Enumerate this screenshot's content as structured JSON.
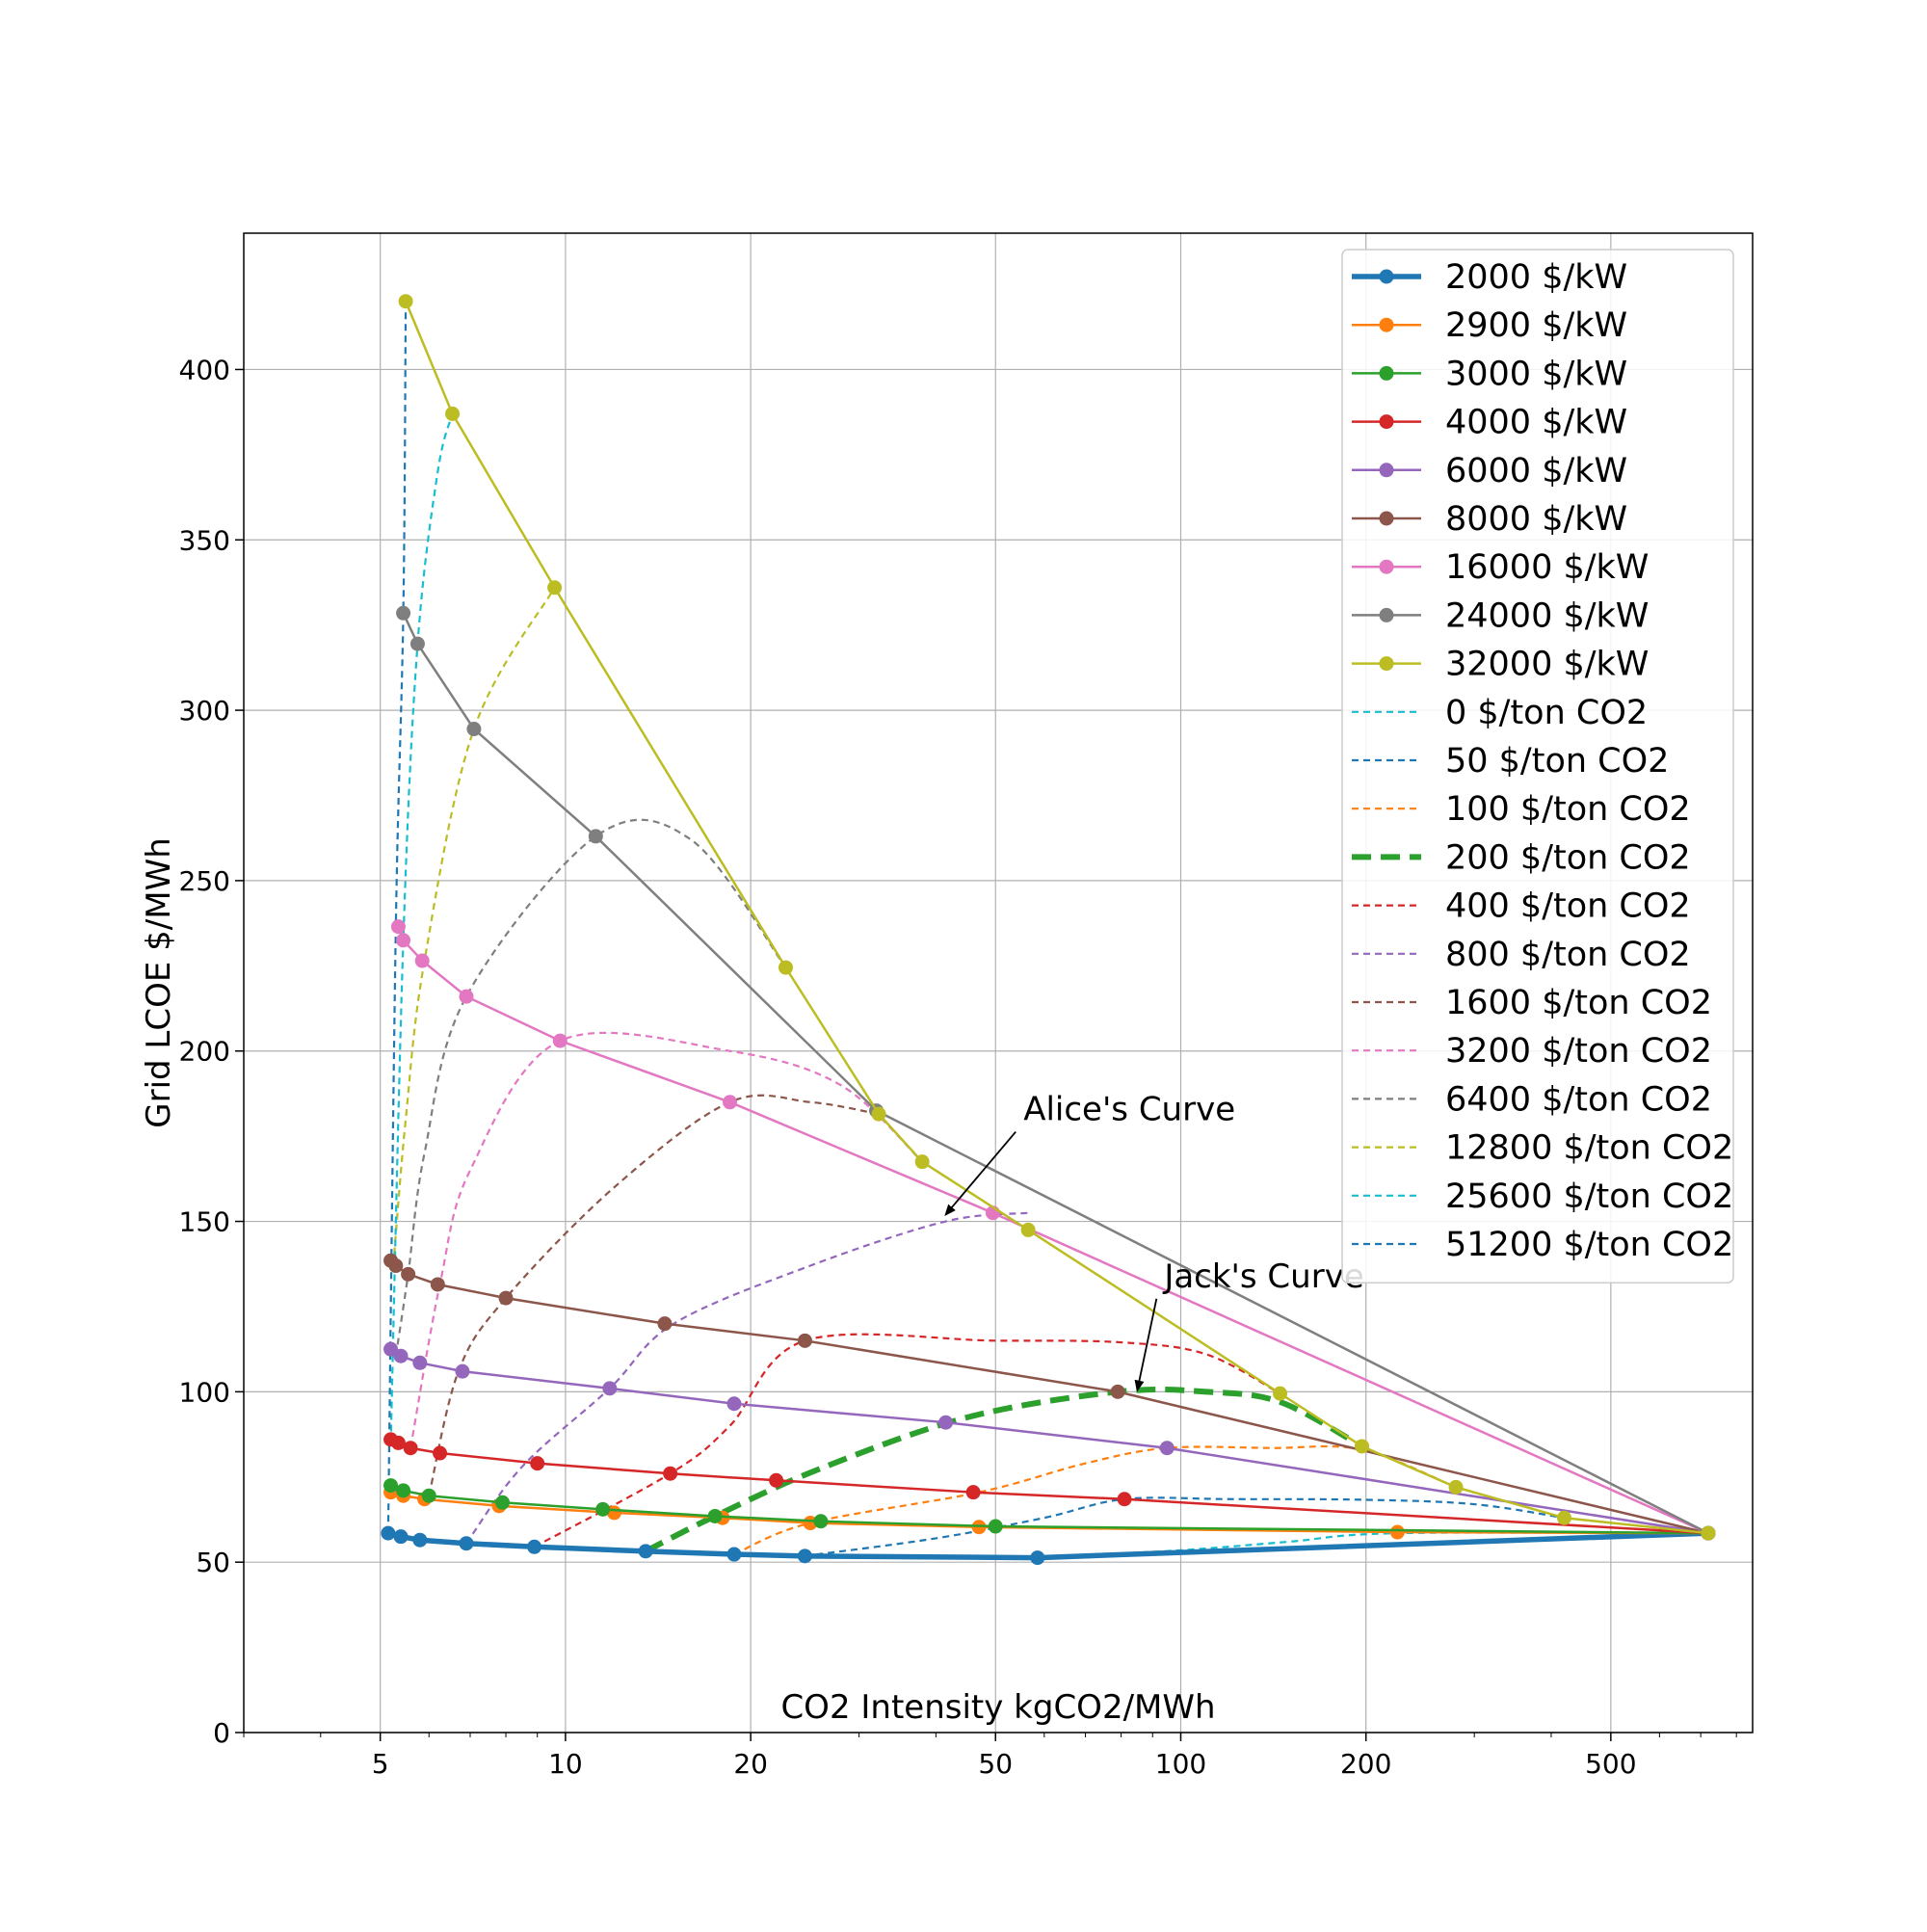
{
  "chart_data": {
    "type": "line",
    "title": "",
    "xlabel": "CO2 Intensity kgCO2/MWh",
    "ylabel": "Grid LCOE $/MWh",
    "xscale": "log",
    "xlim": [
      3,
      850
    ],
    "ylim": [
      0,
      440
    ],
    "xticks": [
      5,
      10,
      20,
      50,
      100,
      200,
      500
    ],
    "xtick_labels": [
      "5",
      "10",
      "20",
      "50",
      "100",
      "200",
      "500"
    ],
    "yticks": [
      0,
      50,
      100,
      150,
      200,
      250,
      300,
      350,
      400
    ],
    "ytick_labels": [
      "0",
      "50",
      "100",
      "150",
      "200",
      "250",
      "300",
      "350",
      "400"
    ],
    "grid": true,
    "legend_position": "top-right",
    "series": [
      {
        "name": "2000 $/kW",
        "style": "solid",
        "marker": true,
        "bold": true,
        "color": "#1f77b4",
        "x": [
          5.15,
          5.4,
          5.8,
          6.9,
          8.9,
          13.5,
          18.8,
          24.5,
          58.5,
          720
        ],
        "y": [
          58.5,
          57.5,
          56.5,
          55.5,
          54.5,
          53.2,
          52.3,
          51.8,
          51.3,
          58.5
        ]
      },
      {
        "name": "2900 $/kW",
        "style": "solid",
        "marker": true,
        "color": "#ff7f0e",
        "x": [
          5.2,
          5.45,
          5.9,
          7.8,
          12.0,
          18.0,
          25.0,
          47.0,
          225,
          720
        ],
        "y": [
          70.5,
          69.5,
          68.5,
          66.5,
          64.5,
          63.0,
          61.5,
          60.3,
          58.8,
          58.5
        ]
      },
      {
        "name": "3000 $/kW",
        "style": "solid",
        "marker": true,
        "color": "#2ca02c",
        "x": [
          5.2,
          5.45,
          6.0,
          7.9,
          11.5,
          17.5,
          26.0,
          50.0,
          720
        ],
        "y": [
          72.5,
          71.0,
          69.5,
          67.5,
          65.5,
          63.5,
          62.0,
          60.5,
          58.5
        ]
      },
      {
        "name": "4000 $/kW",
        "style": "solid",
        "marker": true,
        "color": "#d62728",
        "x": [
          5.2,
          5.35,
          5.6,
          6.25,
          9.0,
          14.8,
          22.0,
          46.0,
          81.0,
          720
        ],
        "y": [
          86.0,
          85.0,
          83.5,
          82.0,
          79.0,
          76.0,
          74.0,
          70.5,
          68.5,
          58.5
        ]
      },
      {
        "name": "6000 $/kW",
        "style": "solid",
        "marker": true,
        "color": "#9467bd",
        "x": [
          5.2,
          5.4,
          5.8,
          6.8,
          11.8,
          18.8,
          41.5,
          95.0,
          720
        ],
        "y": [
          112.5,
          110.5,
          108.5,
          106.0,
          101.0,
          96.5,
          91.0,
          83.5,
          58.5
        ]
      },
      {
        "name": "8000 $/kW",
        "style": "solid",
        "marker": true,
        "color": "#8c564b",
        "x": [
          5.2,
          5.3,
          5.55,
          6.2,
          8.0,
          14.5,
          24.5,
          79.0,
          720
        ],
        "y": [
          138.5,
          137.0,
          134.5,
          131.5,
          127.5,
          120.0,
          115.0,
          100.0,
          58.5
        ]
      },
      {
        "name": "16000 $/kW",
        "style": "solid",
        "marker": true,
        "color": "#e377c2",
        "x": [
          5.35,
          5.45,
          5.85,
          6.9,
          9.8,
          18.5,
          49.5,
          720
        ],
        "y": [
          236.5,
          232.5,
          226.5,
          216.0,
          203.0,
          185.0,
          152.5,
          58.5
        ]
      },
      {
        "name": "24000 $/kW",
        "style": "solid",
        "marker": true,
        "color": "#7f7f7f",
        "x": [
          5.45,
          5.75,
          7.1,
          11.2,
          32.0,
          720
        ],
        "y": [
          328.5,
          319.5,
          294.5,
          263.0,
          182.5,
          58.5
        ]
      },
      {
        "name": "32000 $/kW",
        "style": "solid",
        "marker": true,
        "color": "#bcbd22",
        "x": [
          5.5,
          6.55,
          9.6,
          22.8,
          32.3,
          38.0,
          56.5,
          145,
          197,
          280,
          420,
          720
        ],
        "y": [
          420.0,
          387.0,
          336.0,
          224.5,
          181.5,
          167.5,
          147.5,
          99.5,
          84.0,
          72.0,
          63.0,
          58.5
        ]
      },
      {
        "name": "0 $/ton CO2",
        "style": "dashed",
        "color": "#17becf",
        "x": [
          58.5,
          100,
          150,
          225,
          720
        ],
        "y": [
          51.3,
          53.5,
          56.0,
          58.5,
          58.5
        ]
      },
      {
        "name": "50 $/ton CO2",
        "style": "dashed",
        "color": "#1f77b4",
        "x": [
          24.5,
          40,
          60,
          81,
          120,
          200,
          300,
          420
        ],
        "y": [
          51.8,
          57.0,
          63.0,
          68.5,
          68.5,
          68.3,
          67.0,
          63.0
        ]
      },
      {
        "name": "100 $/ton CO2",
        "style": "dashed",
        "color": "#ff7f0e",
        "x": [
          18.8,
          25,
          47,
          70,
          95,
          140,
          197,
          280
        ],
        "y": [
          52.3,
          61.5,
          70.5,
          79.0,
          83.5,
          83.5,
          83.0,
          72.0
        ]
      },
      {
        "name": "200 $/ton CO2",
        "style": "dashed",
        "bold": true,
        "color": "#2ca02c",
        "x": [
          13.5,
          17.5,
          26,
          45,
          79,
          110,
          145,
          197
        ],
        "y": [
          53.2,
          63.5,
          77.5,
          92.5,
          100.0,
          100.0,
          97.0,
          84.0
        ]
      },
      {
        "name": "400 $/ton CO2",
        "style": "dashed",
        "color": "#d62728",
        "x": [
          8.9,
          14.8,
          18.5,
          24.5,
          50,
          80,
          110,
          145
        ],
        "y": [
          54.5,
          76.0,
          90.0,
          115.0,
          115.0,
          114.5,
          111.0,
          99.5
        ]
      },
      {
        "name": "800 $/ton CO2",
        "style": "dashed",
        "color": "#9467bd",
        "x": [
          6.9,
          8.5,
          11.8,
          15.0,
          25,
          41.5,
          56.5
        ],
        "y": [
          55.5,
          78.0,
          101.0,
          120.0,
          137.0,
          150.0,
          152.5
        ]
      },
      {
        "name": "1600 $/ton CO2",
        "style": "dashed",
        "color": "#8c564b",
        "x": [
          6.0,
          6.7,
          8.0,
          12.0,
          18.5,
          25,
          32.3
        ],
        "y": [
          69.5,
          106.0,
          127.5,
          160.0,
          185.0,
          185.0,
          181.5
        ]
      },
      {
        "name": "3200 $/ton CO2",
        "style": "dashed",
        "color": "#e377c2",
        "x": [
          5.6,
          6.25,
          7.0,
          9.8,
          18.5,
          28,
          38.0
        ],
        "y": [
          83.5,
          131.5,
          165.0,
          203.0,
          200.0,
          190.0,
          167.5
        ]
      },
      {
        "name": "6400 $/ton CO2",
        "style": "dashed",
        "color": "#7f7f7f",
        "x": [
          5.3,
          5.55,
          5.9,
          6.9,
          11.2,
          16,
          22.8
        ],
        "y": [
          110.5,
          134.5,
          170.0,
          216.0,
          263.0,
          262.0,
          224.5
        ]
      },
      {
        "name": "12800 $/ton CO2",
        "style": "dashed",
        "color": "#bcbd22",
        "x": [
          5.25,
          5.5,
          5.9,
          7.1,
          9.6
        ],
        "y": [
          137.0,
          180.0,
          226.5,
          294.5,
          336.0
        ]
      },
      {
        "name": "25600 $/ton CO2",
        "style": "dashed",
        "color": "#17becf",
        "x": [
          5.2,
          5.45,
          5.75,
          6.2,
          6.55
        ],
        "y": [
          85.0,
          232.5,
          319.5,
          370.0,
          387.0
        ]
      },
      {
        "name": "51200 $/ton CO2",
        "style": "dashed",
        "color": "#1f77b4",
        "x": [
          5.15,
          5.3,
          5.45,
          5.5
        ],
        "y": [
          58.5,
          236.5,
          328.5,
          420.0
        ]
      }
    ],
    "annotations": [
      {
        "text": "Alice's Curve",
        "xy": [
          41.5,
          152.0
        ],
        "xytext": [
          55.5,
          178.0
        ]
      },
      {
        "text": "Jack's Curve",
        "xy": [
          85.0,
          100.5
        ],
        "xytext": [
          94.0,
          129.0
        ]
      }
    ]
  }
}
